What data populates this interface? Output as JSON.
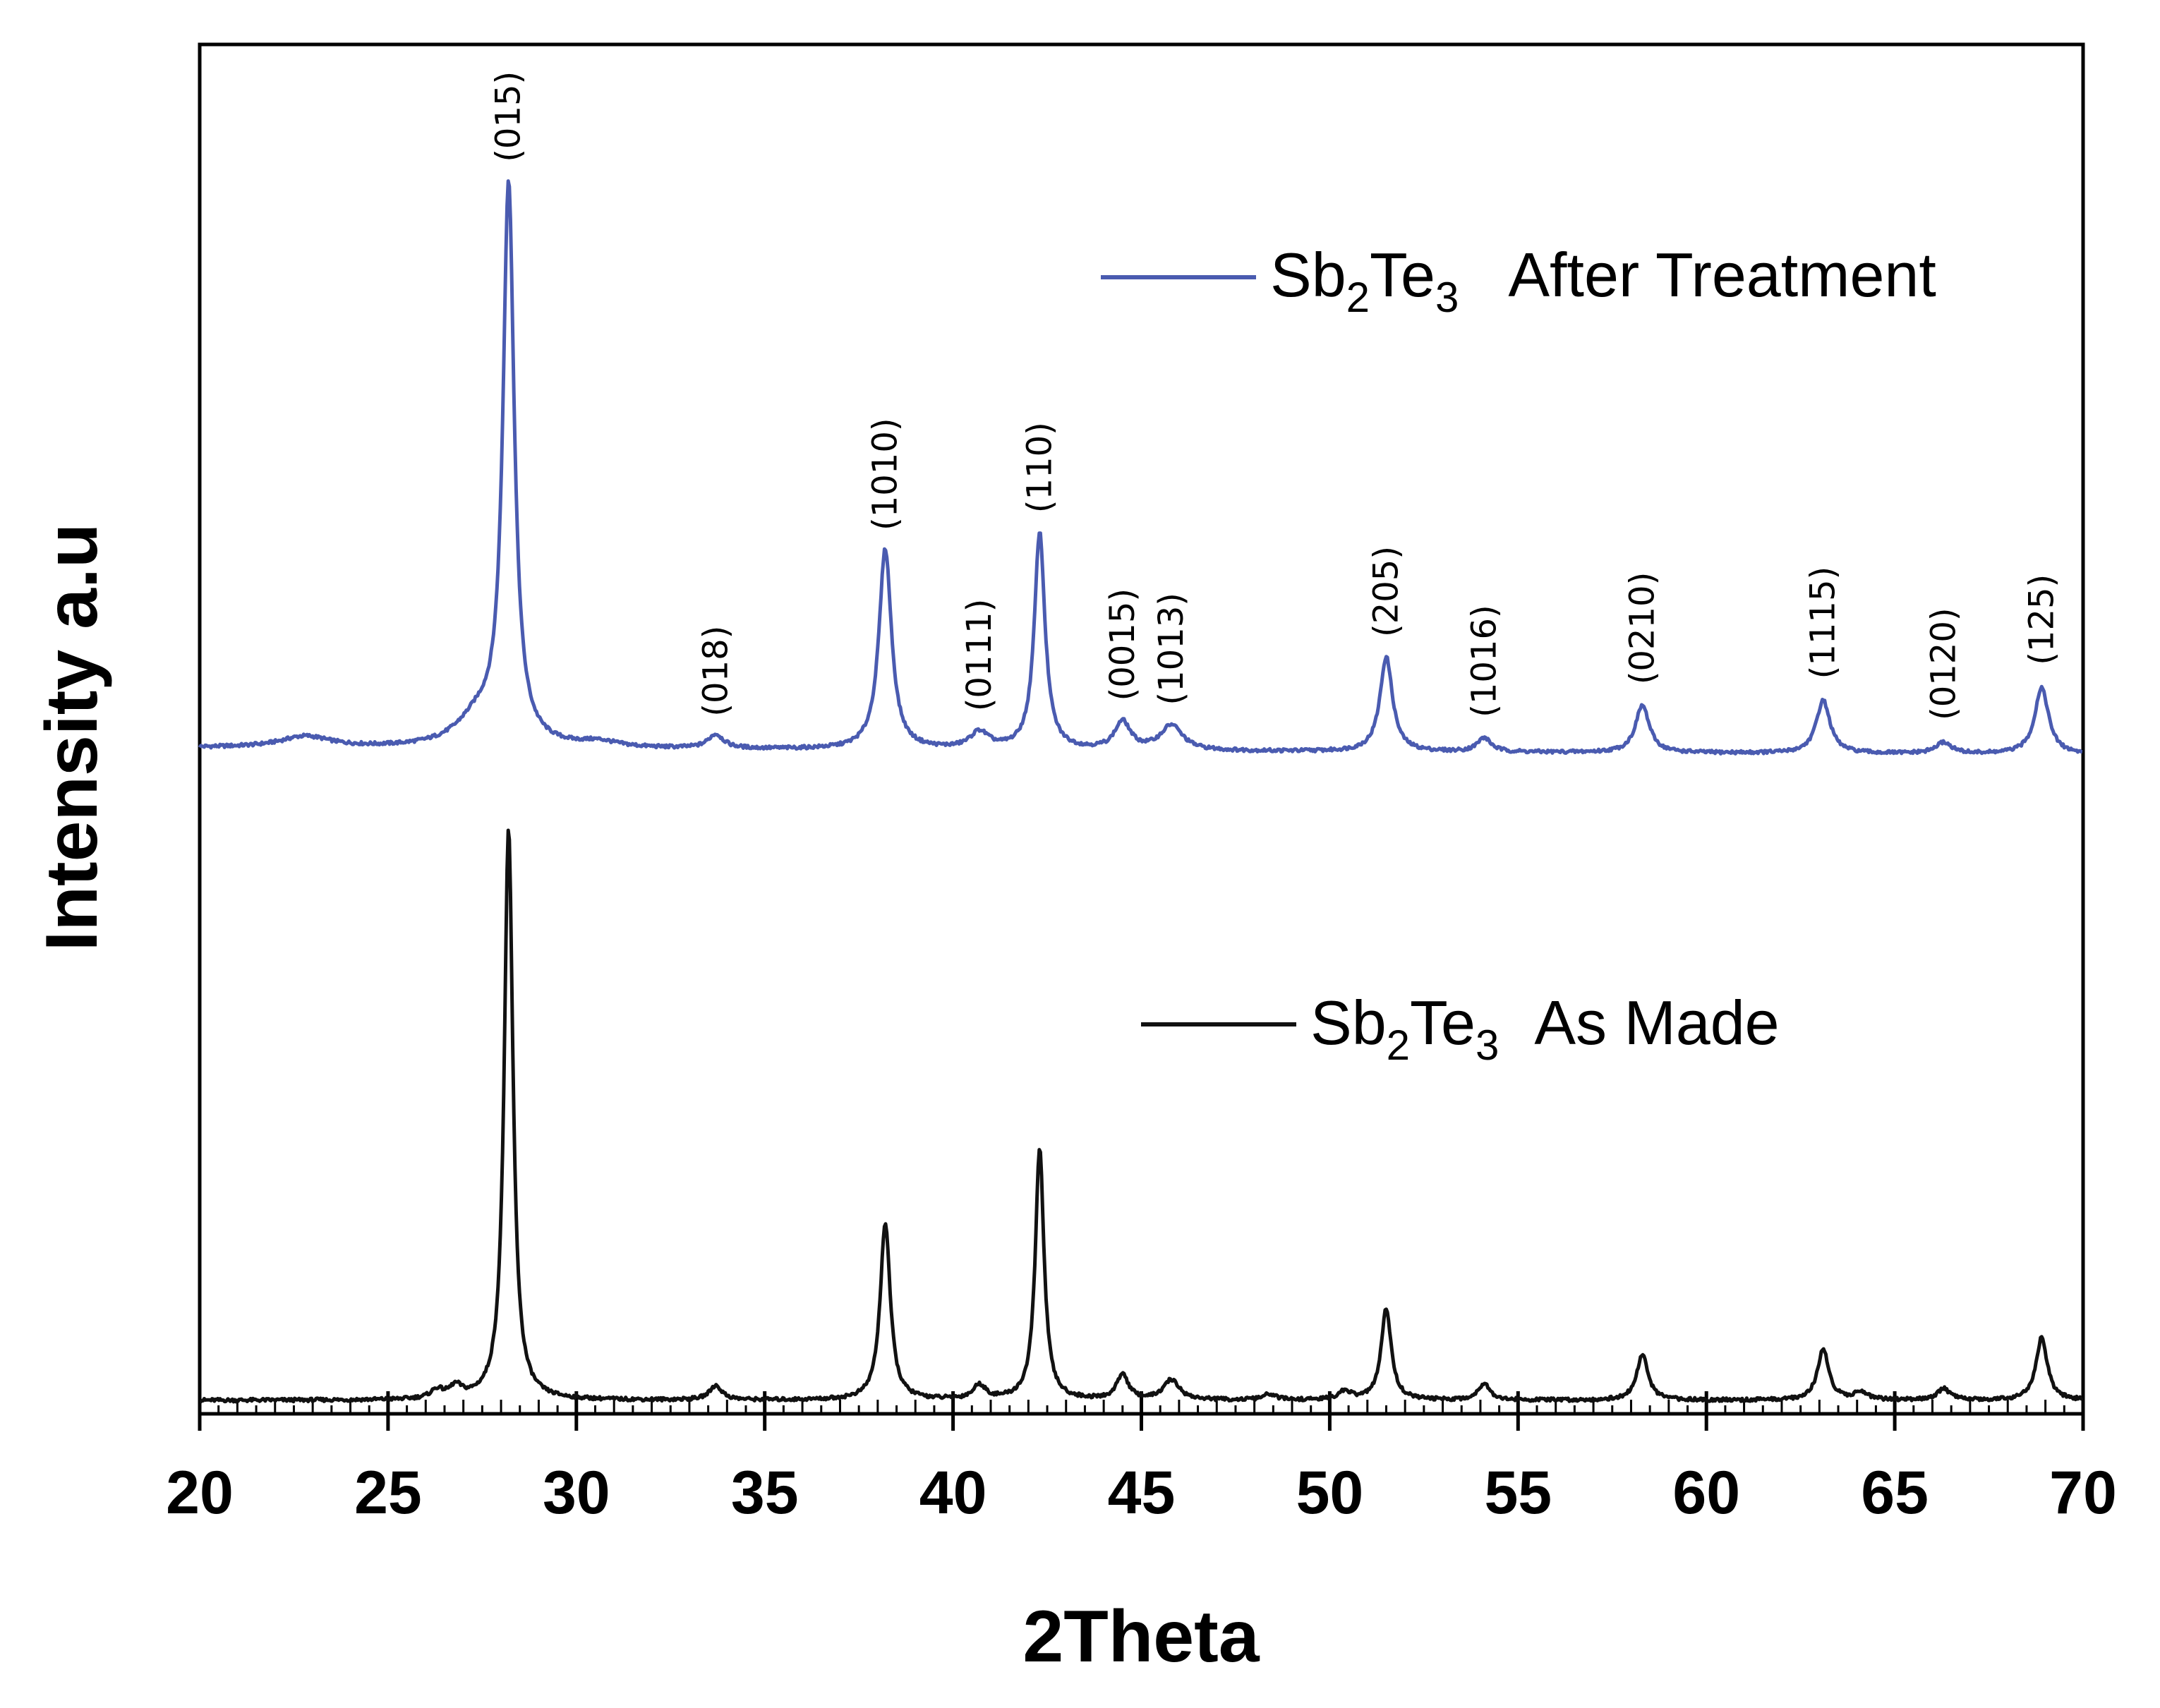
{
  "chart_data": {
    "type": "line",
    "title": "",
    "xlabel": "2Theta",
    "ylabel": "Intensity a.u",
    "xlim": [
      20,
      70
    ],
    "xticks": [
      20,
      25,
      30,
      35,
      40,
      45,
      50,
      55,
      60,
      65,
      70
    ],
    "yticks_shown": false,
    "grid": false,
    "legend_placement": "inline-right",
    "series": [
      {
        "name": "Sb2Te3 After Treatment",
        "legend_prefix": "Sb",
        "legend_sub1": "2",
        "legend_mid": "Te",
        "legend_sub2": "3",
        "legend_suffix": "After Treatment",
        "color": "#4a5bb0",
        "baseline": 0.0,
        "peaks": [
          {
            "x": 22.8,
            "height": 0.02,
            "width": 0.8
          },
          {
            "x": 27.4,
            "height": 0.05,
            "width": 0.7
          },
          {
            "x": 28.2,
            "height": 1.0,
            "width": 0.18
          },
          {
            "x": 30.6,
            "height": 0.01,
            "width": 0.6
          },
          {
            "x": 33.7,
            "height": 0.025,
            "width": 0.25
          },
          {
            "x": 38.2,
            "height": 0.36,
            "width": 0.2
          },
          {
            "x": 40.7,
            "height": 0.03,
            "width": 0.3
          },
          {
            "x": 42.3,
            "height": 0.39,
            "width": 0.17
          },
          {
            "x": 44.5,
            "height": 0.05,
            "width": 0.25
          },
          {
            "x": 45.8,
            "height": 0.045,
            "width": 0.35
          },
          {
            "x": 51.5,
            "height": 0.17,
            "width": 0.2
          },
          {
            "x": 54.1,
            "height": 0.025,
            "width": 0.22
          },
          {
            "x": 58.3,
            "height": 0.085,
            "width": 0.22
          },
          {
            "x": 63.1,
            "height": 0.095,
            "width": 0.22
          },
          {
            "x": 66.3,
            "height": 0.02,
            "width": 0.25
          },
          {
            "x": 68.9,
            "height": 0.12,
            "width": 0.22
          }
        ],
        "peak_labels": [
          {
            "text": "(015)",
            "x": 28.2
          },
          {
            "text": "(018)",
            "x": 33.7
          },
          {
            "text": "(1010)",
            "x": 38.2
          },
          {
            "text": "(0111)",
            "x": 40.7
          },
          {
            "text": "(110)",
            "x": 42.3
          },
          {
            "text": "(0015)",
            "x": 44.5
          },
          {
            "text": "(1013)",
            "x": 45.8
          },
          {
            "text": "(205)",
            "x": 51.5
          },
          {
            "text": "(1016)",
            "x": 54.1
          },
          {
            "text": "(0210)",
            "x": 58.3
          },
          {
            "text": "(1115)",
            "x": 63.1
          },
          {
            "text": "(0120)",
            "x": 66.3
          },
          {
            "text": "(125)",
            "x": 68.9
          }
        ]
      },
      {
        "name": "Sb2Te3 As Made",
        "legend_prefix": "Sb",
        "legend_sub1": "2",
        "legend_mid": "Te",
        "legend_sub2": "3",
        "legend_suffix": "As Made",
        "color": "#111111",
        "baseline": 0.0,
        "peaks": [
          {
            "x": 26.3,
            "height": 0.015,
            "width": 0.2
          },
          {
            "x": 26.8,
            "height": 0.02,
            "width": 0.2
          },
          {
            "x": 28.2,
            "height": 1.0,
            "width": 0.14
          },
          {
            "x": 33.7,
            "height": 0.025,
            "width": 0.2
          },
          {
            "x": 38.2,
            "height": 0.31,
            "width": 0.16
          },
          {
            "x": 40.7,
            "height": 0.025,
            "width": 0.2
          },
          {
            "x": 42.3,
            "height": 0.44,
            "width": 0.14
          },
          {
            "x": 44.5,
            "height": 0.045,
            "width": 0.18
          },
          {
            "x": 45.8,
            "height": 0.035,
            "width": 0.25
          },
          {
            "x": 48.4,
            "height": 0.01,
            "width": 0.2
          },
          {
            "x": 50.4,
            "height": 0.015,
            "width": 0.2
          },
          {
            "x": 51.5,
            "height": 0.16,
            "width": 0.16
          },
          {
            "x": 54.1,
            "height": 0.03,
            "width": 0.18
          },
          {
            "x": 58.3,
            "height": 0.08,
            "width": 0.18
          },
          {
            "x": 63.1,
            "height": 0.09,
            "width": 0.18
          },
          {
            "x": 64.1,
            "height": 0.015,
            "width": 0.2
          },
          {
            "x": 66.3,
            "height": 0.02,
            "width": 0.2
          },
          {
            "x": 68.9,
            "height": 0.11,
            "width": 0.18
          }
        ]
      }
    ]
  }
}
